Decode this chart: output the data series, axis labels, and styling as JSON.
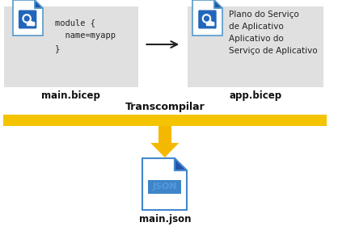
{
  "bg_color": "#ffffff",
  "title_transpile": "Transcompilar",
  "label_main_bicep": "main.bicep",
  "label_app_bicep": "app.bicep",
  "label_main_json": "main.json",
  "code_lines": [
    "module {",
    "  name=myapp",
    "}"
  ],
  "app_lines": [
    "Plano do Serviço",
    "de Aplicativo",
    "Aplicativo do",
    "Serviço de Aplicativo"
  ],
  "json_label": "JSON",
  "box_color": "#e0e0e0",
  "arrow_color": "#222222",
  "bar_color": "#f5c400",
  "down_arrow_color_top": "#f5b800",
  "down_arrow_color_bot": "#e8a000",
  "file_body_color": "#ffffff",
  "file_border_color": "#5599cc",
  "file_fold_color": "#2255aa",
  "json_body_color": "#ffffff",
  "json_border_color": "#4488cc",
  "json_fold_color": "#2255aa",
  "json_text_color": "#5599dd",
  "bicep_icon_bg": "#2266bb",
  "bicep_icon_border": "#1a55aa",
  "code_color": "#222222",
  "label_color": "#111111"
}
